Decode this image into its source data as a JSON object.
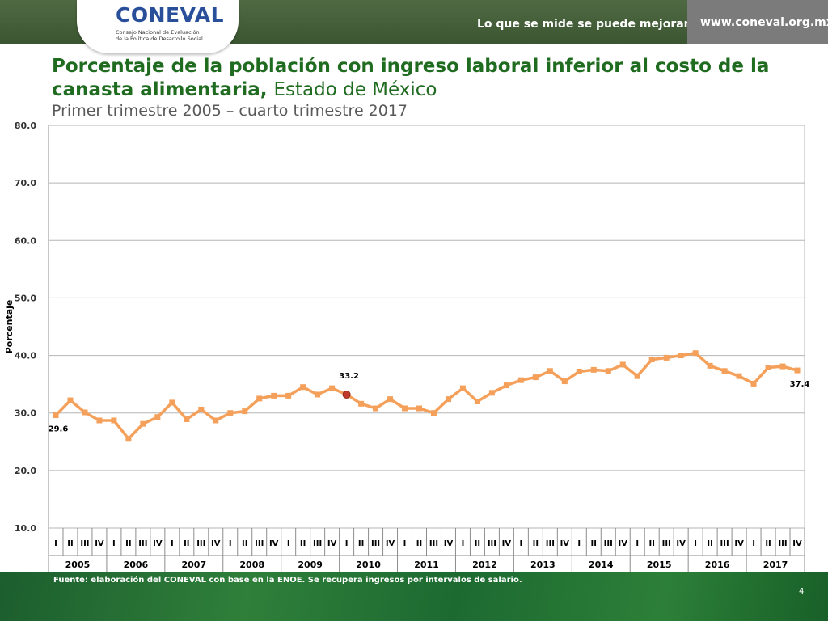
{
  "header": {
    "logo_text": "CONEVAL",
    "logo_sub_line1": "Consejo Nacional de Evaluación",
    "logo_sub_line2": "de la Política de Desarrollo Social",
    "tagline": "Lo que se mide se puede mejorar",
    "url": "www.coneval.org.mx"
  },
  "footer": {
    "source": "Fuente: elaboración del CONEVAL con base en la ENOE. Se recupera ingresos por intervalos de salario.",
    "page_number": "4"
  },
  "colors": {
    "header_green": "#3f5a35",
    "title_green": "#1f6b1f",
    "series_orange": "#f5a05a",
    "highlight_point": "#c0392b",
    "url_box_gray": "#7b7b7b"
  },
  "chart_data": {
    "type": "line",
    "title": "Porcentaje de la población con ingreso laboral inferior al costo de la canasta alimentaria,",
    "title_state": "Estado de México",
    "subtitle": "Primer trimestre 2005 – cuarto trimestre 2017",
    "ylabel": "Porcentaje",
    "xlabel": "",
    "ylim": [
      10,
      80
    ],
    "yticks": [
      "10.0",
      "20.0",
      "30.0",
      "40.0",
      "50.0",
      "60.0",
      "70.0",
      "80.0"
    ],
    "grid": true,
    "quarters": [
      "I",
      "II",
      "III",
      "IV"
    ],
    "years": [
      "2005",
      "2006",
      "2007",
      "2008",
      "2009",
      "2010",
      "2011",
      "2012",
      "2013",
      "2014",
      "2015",
      "2016",
      "2017"
    ],
    "values": [
      29.6,
      32.2,
      30.1,
      28.7,
      28.7,
      25.5,
      28.1,
      29.3,
      31.8,
      28.9,
      30.6,
      28.7,
      30.0,
      30.3,
      32.5,
      33.0,
      33.0,
      34.5,
      33.2,
      34.3,
      33.2,
      31.6,
      30.8,
      32.4,
      30.8,
      30.8,
      30.0,
      32.4,
      34.3,
      32.0,
      33.5,
      34.8,
      35.7,
      36.2,
      37.3,
      35.5,
      37.2,
      37.5,
      37.3,
      38.4,
      36.4,
      39.3,
      39.6,
      40.0,
      40.4,
      38.2,
      37.3,
      36.4,
      35.1,
      37.9,
      38.1,
      37.4
    ],
    "annotations": [
      {
        "index": 0,
        "label": "29.6",
        "position": "below"
      },
      {
        "index": 20,
        "label": "33.2",
        "position": "above",
        "highlight": true
      },
      {
        "index": 51,
        "label": "37.4",
        "position": "below"
      }
    ]
  }
}
